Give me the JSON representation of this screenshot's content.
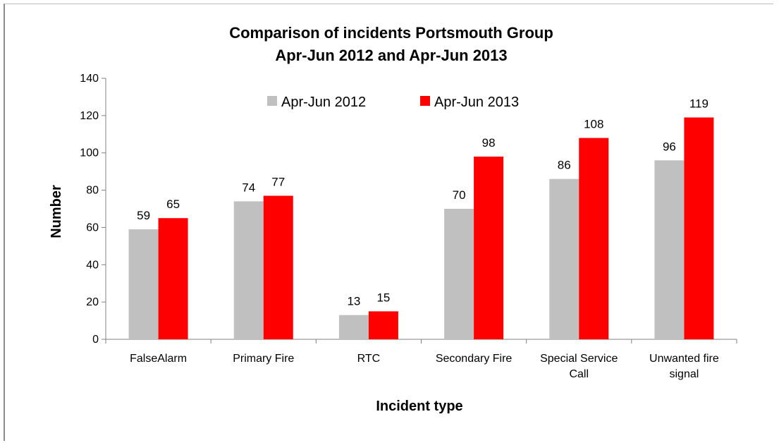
{
  "chart_data": {
    "type": "bar",
    "title_lines": [
      "Comparison of incidents Portsmouth Group",
      "Apr-Jun 2012 and Apr-Jun 2013"
    ],
    "xlabel": "Incident type",
    "ylabel": "Number",
    "ylim": [
      0,
      140
    ],
    "yticks": [
      0,
      20,
      40,
      60,
      80,
      100,
      120,
      140
    ],
    "categories": [
      [
        "FalseAlarm"
      ],
      [
        "Primary Fire"
      ],
      [
        "RTC"
      ],
      [
        "Secondary Fire"
      ],
      [
        "Special Service",
        "Call"
      ],
      [
        "Unwanted fire",
        "signal"
      ]
    ],
    "series": [
      {
        "name": "Apr-Jun 2012",
        "color": "#c0c0c0",
        "values": [
          59,
          74,
          13,
          70,
          86,
          96
        ]
      },
      {
        "name": "Apr-Jun 2013",
        "color": "#ff0000",
        "values": [
          65,
          77,
          15,
          98,
          108,
          119
        ]
      }
    ],
    "legend_position": "top-center",
    "grid": false,
    "data_labels": true
  }
}
